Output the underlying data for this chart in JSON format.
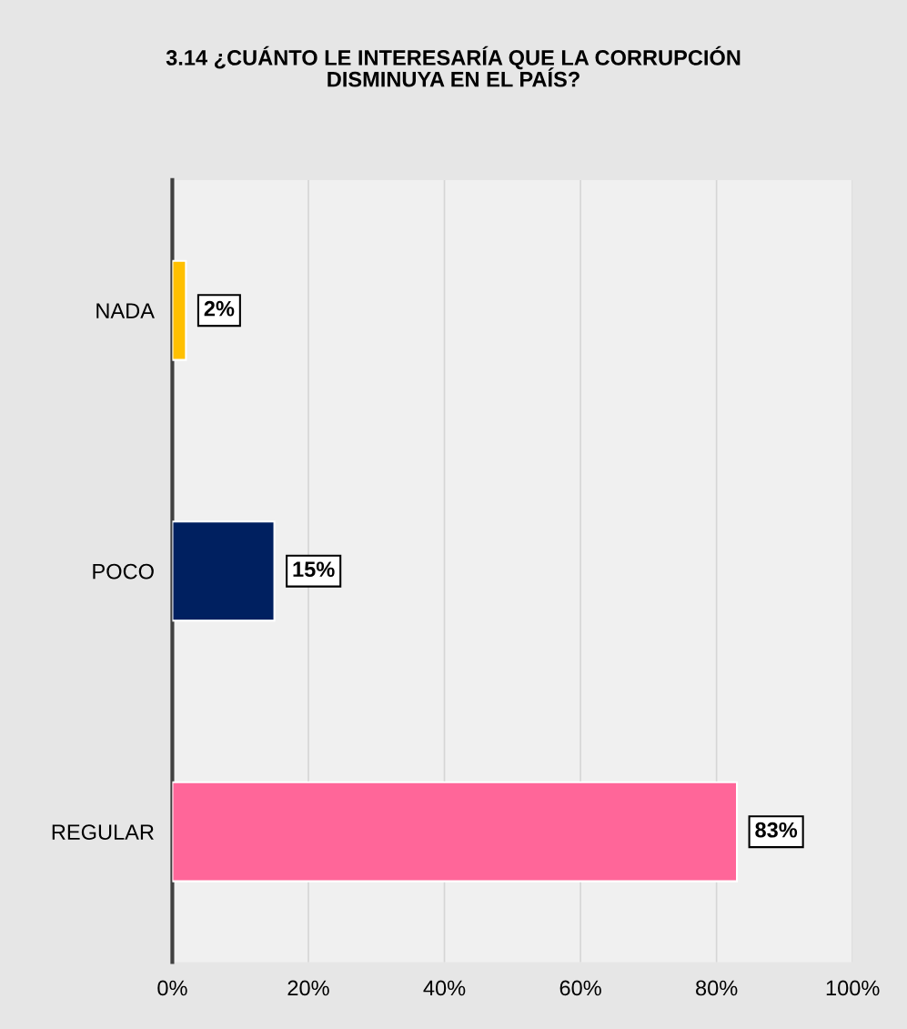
{
  "chart_data": {
    "type": "bar",
    "orientation": "horizontal",
    "title": "3.14 ¿CUÁNTO LE INTERESARÍA QUE LA CORRUPCIÓN\nDISMINUYA EN EL PAÍS?",
    "categories": [
      "NADA",
      "POCO",
      "REGULAR"
    ],
    "values": [
      2,
      15,
      83
    ],
    "colors": [
      "#ffc000",
      "#002060",
      "#ff6699"
    ],
    "value_labels": [
      "2%",
      "15%",
      "83%"
    ],
    "xlim": [
      0,
      100
    ],
    "xticks": [
      {
        "value": 0,
        "label": "0%"
      },
      {
        "value": 20,
        "label": "20%"
      },
      {
        "value": 40,
        "label": "40%"
      },
      {
        "value": 60,
        "label": "60%"
      },
      {
        "value": 80,
        "label": "80%"
      },
      {
        "value": 100,
        "label": "100%"
      }
    ],
    "grid": "x",
    "legend": false
  }
}
